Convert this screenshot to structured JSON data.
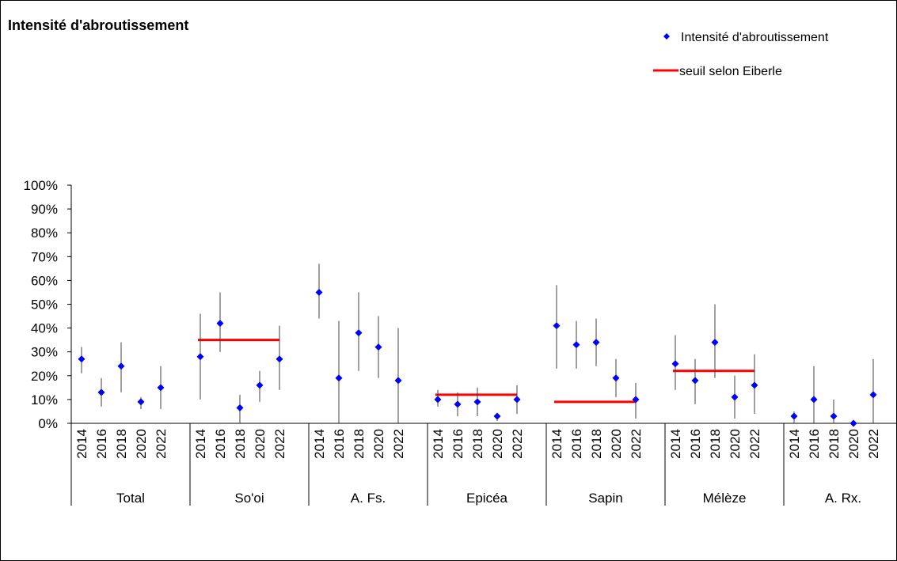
{
  "chart_data": {
    "type": "scatter",
    "title": "Intensité d'abroutissement",
    "xlabel": "",
    "ylabel": "",
    "ylim": [
      0,
      1
    ],
    "y_ticks": [
      "0%",
      "10%",
      "20%",
      "30%",
      "40%",
      "50%",
      "60%",
      "70%",
      "80%",
      "90%",
      "100%"
    ],
    "grid": false,
    "legend_position": "top-right",
    "groups": [
      {
        "name": "Total",
        "years": [
          "2014",
          "2016",
          "2018",
          "2020",
          "2022"
        ],
        "values": [
          0.27,
          0.13,
          0.24,
          0.09,
          0.15
        ],
        "lower": [
          0.21,
          0.07,
          0.13,
          0.06,
          0.06
        ],
        "upper": [
          0.32,
          0.19,
          0.34,
          0.11,
          0.24
        ],
        "threshold": null
      },
      {
        "name": "So'oi",
        "years": [
          "2014",
          "2016",
          "2018",
          "2020",
          "2022"
        ],
        "values": [
          0.28,
          0.42,
          0.065,
          0.16,
          0.27
        ],
        "lower": [
          0.1,
          0.3,
          0.0,
          0.09,
          0.14
        ],
        "upper": [
          0.46,
          0.55,
          0.12,
          0.22,
          0.41
        ],
        "threshold": 0.35
      },
      {
        "name": "A. Fs.",
        "years": [
          "2014",
          "2016",
          "2018",
          "2020",
          "2022"
        ],
        "values": [
          0.55,
          0.19,
          0.38,
          0.32,
          0.18
        ],
        "lower": [
          0.44,
          0.0,
          0.22,
          0.19,
          0.0
        ],
        "upper": [
          0.67,
          0.43,
          0.55,
          0.45,
          0.4
        ],
        "threshold": null
      },
      {
        "name": "Epicéa",
        "years": [
          "2014",
          "2016",
          "2018",
          "2020",
          "2022"
        ],
        "values": [
          0.1,
          0.08,
          0.09,
          0.03,
          0.1
        ],
        "lower": [
          0.07,
          0.03,
          0.03,
          0.01,
          0.04
        ],
        "upper": [
          0.14,
          0.13,
          0.15,
          0.04,
          0.16
        ],
        "threshold": 0.12
      },
      {
        "name": "Sapin",
        "years": [
          "2014",
          "2016",
          "2018",
          "2020",
          "2022"
        ],
        "values": [
          0.41,
          0.33,
          0.34,
          0.19,
          0.1
        ],
        "lower": [
          0.23,
          0.23,
          0.24,
          0.11,
          0.02
        ],
        "upper": [
          0.58,
          0.43,
          0.44,
          0.27,
          0.17
        ],
        "threshold": 0.09
      },
      {
        "name": "Mélèze",
        "years": [
          "2014",
          "2016",
          "2018",
          "2020",
          "2022"
        ],
        "values": [
          0.25,
          0.18,
          0.34,
          0.11,
          0.16
        ],
        "lower": [
          0.14,
          0.08,
          0.19,
          0.02,
          0.04
        ],
        "upper": [
          0.37,
          0.27,
          0.5,
          0.2,
          0.29
        ],
        "threshold": 0.22
      },
      {
        "name": "A. Rx.",
        "years": [
          "2014",
          "2016",
          "2018",
          "2020",
          "2022"
        ],
        "values": [
          0.03,
          0.1,
          0.03,
          0.0,
          0.12
        ],
        "lower": [
          0.0,
          0.0,
          0.0,
          0.0,
          0.0
        ],
        "upper": [
          0.05,
          0.24,
          0.1,
          0.0,
          0.27
        ],
        "threshold": null
      }
    ],
    "legend": [
      {
        "label": "Intensité d'abroutissement",
        "marker": "diamond",
        "color": "#0000ff"
      },
      {
        "label": "seuil selon Eiberle",
        "marker": "line",
        "color": "#ff0000"
      }
    ],
    "colors": {
      "points": "#0000ff",
      "threshold": "#ff0000",
      "error_bars": "#404040",
      "axis": "#000000"
    }
  }
}
